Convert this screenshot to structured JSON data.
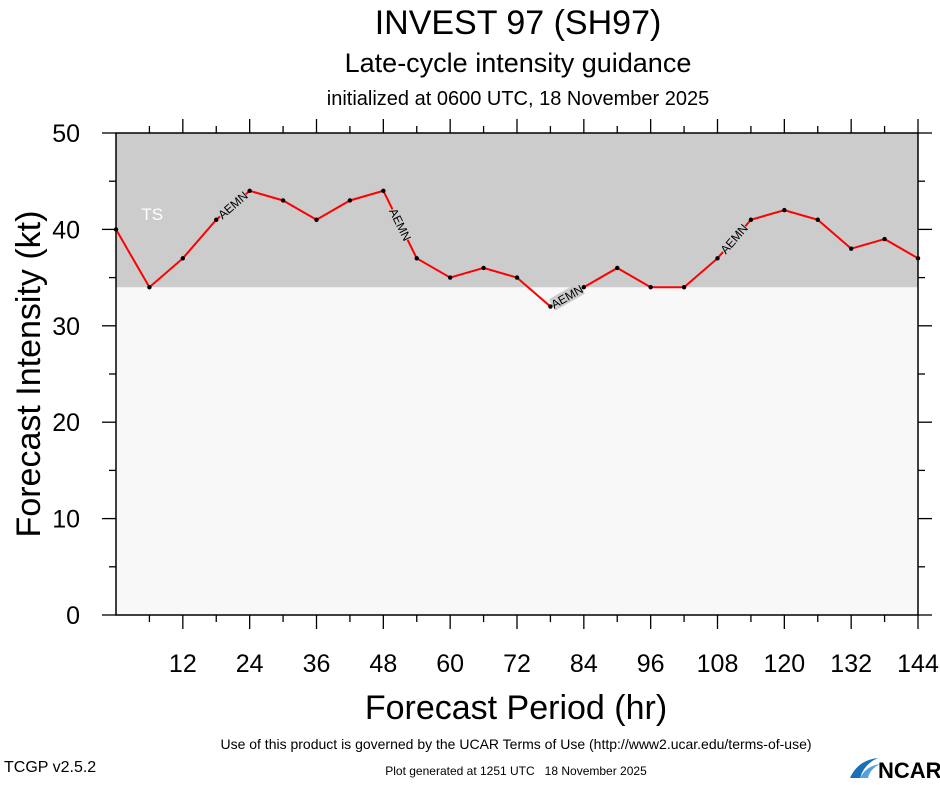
{
  "chart_data": {
    "type": "line",
    "title": "INVEST 97 (SH97)",
    "subtitle": "Late-cycle intensity guidance",
    "subtitle2": "initialized at 0600 UTC, 18 November 2025",
    "xlabel": "Forecast Period (hr)",
    "ylabel": "Forecast Intensity (kt)",
    "xlim": [
      0,
      144
    ],
    "ylim": [
      0,
      50
    ],
    "xticks": [
      12,
      24,
      36,
      48,
      60,
      72,
      84,
      96,
      108,
      120,
      132,
      144
    ],
    "yticks": [
      0,
      10,
      20,
      30,
      40,
      50
    ],
    "grid": false,
    "bands": [
      {
        "label": "TS",
        "from": 34,
        "to": 50,
        "color": "#cccccc"
      }
    ],
    "below_band_color": "#f8f8f8",
    "series": [
      {
        "name": "AEMN",
        "color": "#ff0000",
        "x": [
          0,
          6,
          12,
          18,
          24,
          30,
          36,
          42,
          48,
          54,
          60,
          66,
          72,
          78,
          84,
          90,
          96,
          102,
          108,
          114,
          120,
          126,
          132,
          138,
          144
        ],
        "y": [
          40,
          34,
          37,
          41,
          44,
          43,
          41,
          43,
          44,
          37,
          35,
          36,
          35,
          32,
          34,
          36,
          34,
          34,
          37,
          41,
          42,
          41,
          38,
          39,
          37
        ]
      }
    ]
  },
  "footer": {
    "version": "TCGP v2.5.2",
    "terms": "Use of this product is governed by the UCAR Terms of Use (http://www2.ucar.edu/terms-of-use)",
    "generated": "Plot generated at 1251 UTC   18 November 2025",
    "logo": "NCAR"
  }
}
